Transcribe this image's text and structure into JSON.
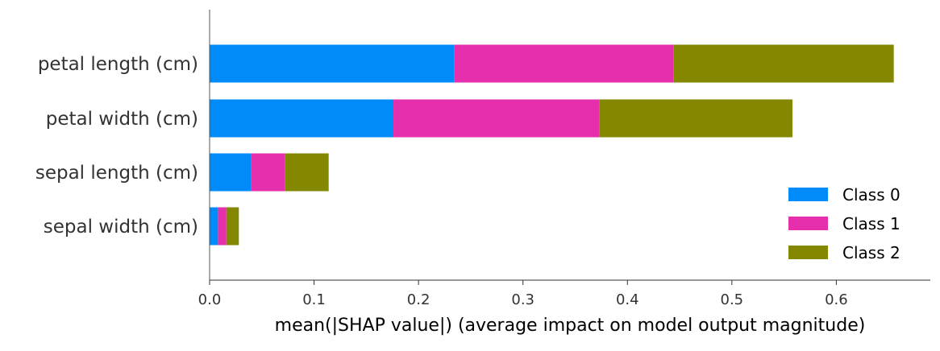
{
  "chart_data": {
    "type": "bar",
    "orientation": "horizontal",
    "stacked": true,
    "categories": [
      "petal length (cm)",
      "petal width (cm)",
      "sepal length (cm)",
      "sepal width (cm)"
    ],
    "series": [
      {
        "name": "Class 0",
        "values": [
          0.234,
          0.176,
          0.04,
          0.008
        ],
        "color": "#008bfb"
      },
      {
        "name": "Class 1",
        "values": [
          0.21,
          0.197,
          0.032,
          0.008
        ],
        "color": "#e52fac"
      },
      {
        "name": "Class 2",
        "values": [
          0.211,
          0.185,
          0.042,
          0.012
        ],
        "color": "#838800"
      }
    ],
    "xlabel": "mean(|SHAP value|) (average impact on model output magnitude)",
    "ylabel": "",
    "title": "",
    "xlim": [
      0,
      0.69
    ],
    "xticks": [
      0.0,
      0.1,
      0.2,
      0.3,
      0.4,
      0.5,
      0.6
    ],
    "xtick_labels": [
      "0.0",
      "0.1",
      "0.2",
      "0.3",
      "0.4",
      "0.5",
      "0.6"
    ],
    "grid": false,
    "legend_position": "lower-right"
  }
}
